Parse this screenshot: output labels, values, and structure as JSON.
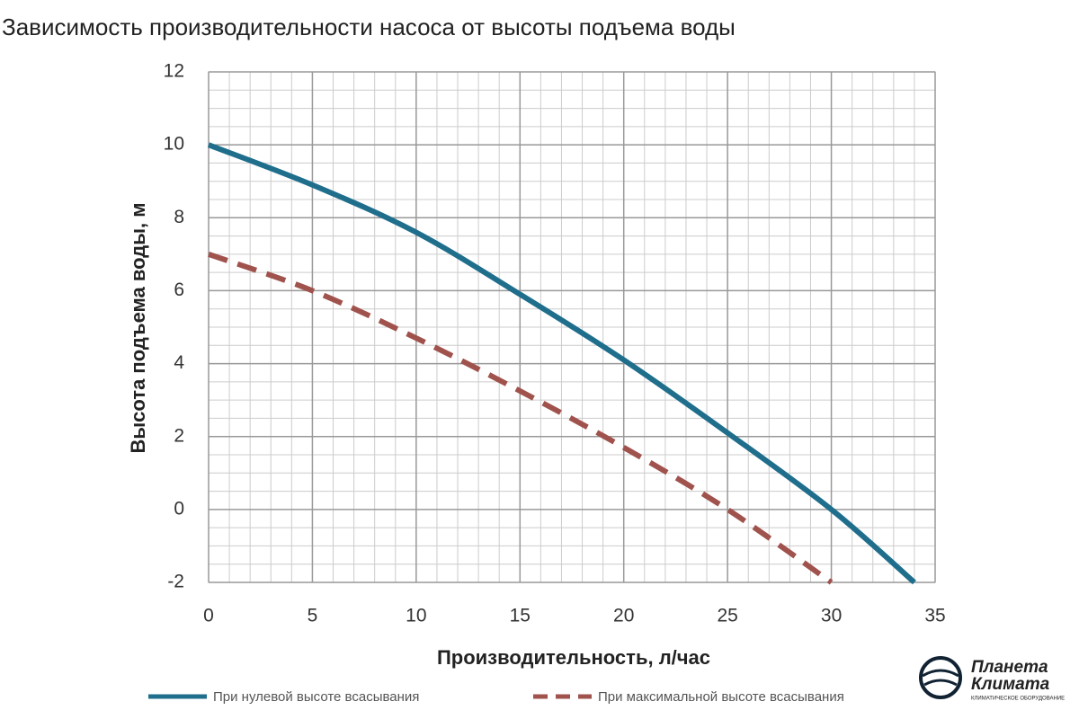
{
  "chart_data": {
    "type": "line",
    "title": "Зависимость производительности насоса от высоты подъема воды",
    "x_label": "Производительность, л/час",
    "y_label": "Высота подъема воды, м",
    "series": [
      {
        "name": "При нулевой высоте всасывания",
        "color": "#1f6e8c",
        "dash": false,
        "x": [
          0,
          5,
          10,
          15,
          20,
          25,
          30,
          34
        ],
        "values": [
          10,
          8.9,
          7.6,
          5.9,
          4.1,
          2.1,
          0,
          -2
        ]
      },
      {
        "name": "При максимальной высоте всасывания",
        "color": "#a0524d",
        "dash": true,
        "x": [
          0,
          5,
          10,
          15,
          20,
          25,
          30
        ],
        "values": [
          7,
          6,
          4.7,
          3.25,
          1.7,
          0,
          -2
        ]
      }
    ],
    "xlim": [
      0,
      35
    ],
    "xticks": [
      0,
      5,
      10,
      15,
      20,
      25,
      30,
      35
    ],
    "ylim": [
      -2,
      12
    ],
    "yticks": [
      -2,
      0,
      2,
      4,
      6,
      8,
      10,
      12
    ],
    "grid": true,
    "minor_grid": true,
    "legend": "bottom"
  },
  "watermark": {
    "line1": "Планета",
    "line2": "Климата",
    "tagline": "КЛИМАТИЧЕСКОЕ ОБОРУДОВАНИЕ"
  }
}
